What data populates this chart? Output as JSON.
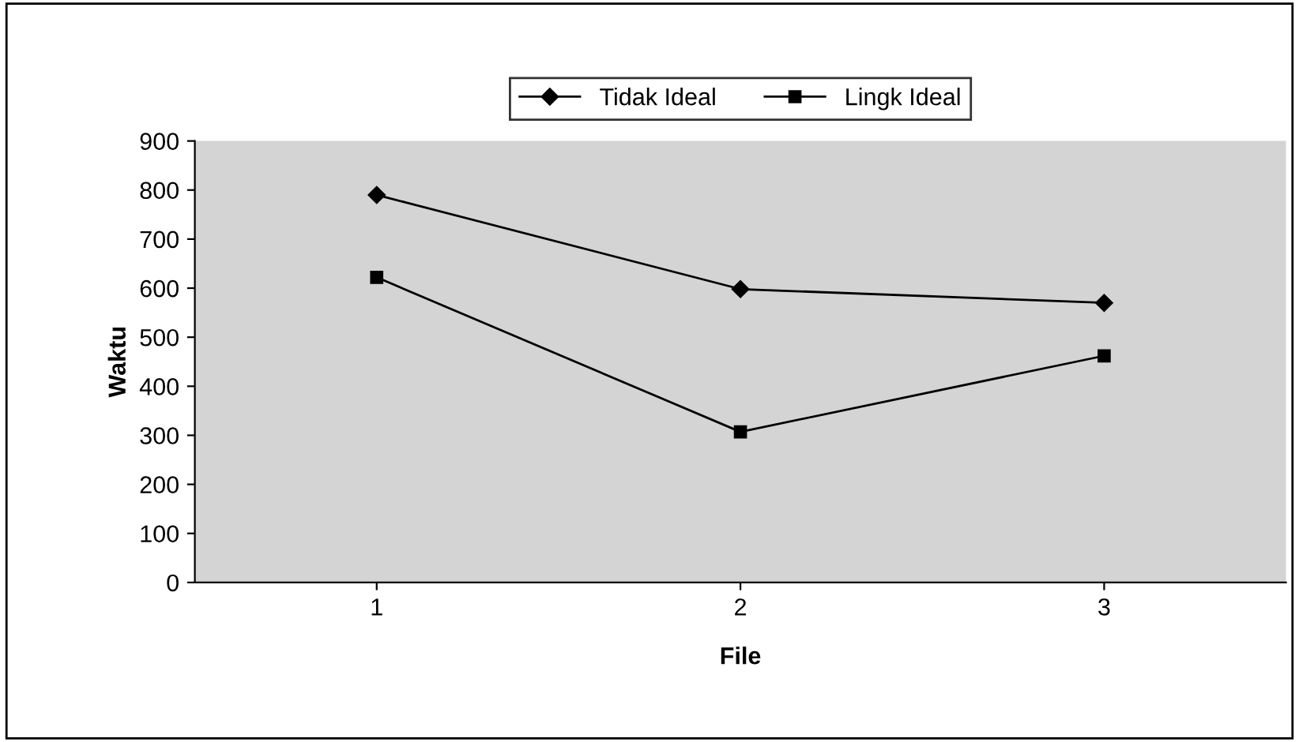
{
  "chart_data": {
    "type": "line",
    "xlabel": "File",
    "ylabel": "Waktu",
    "categories": [
      "1",
      "2",
      "3"
    ],
    "series": [
      {
        "name": "Tidak Ideal",
        "color": "#000000",
        "marker": "diamond",
        "values": [
          790,
          598,
          570
        ]
      },
      {
        "name": "Lingk Ideal",
        "color": "#000000",
        "marker": "square",
        "values": [
          622,
          307,
          462
        ]
      }
    ],
    "ylim": [
      0,
      900
    ],
    "yticks": [
      0,
      100,
      200,
      300,
      400,
      500,
      600,
      700,
      800,
      900
    ],
    "grid": false,
    "legend": "top",
    "line_style": "solid"
  }
}
